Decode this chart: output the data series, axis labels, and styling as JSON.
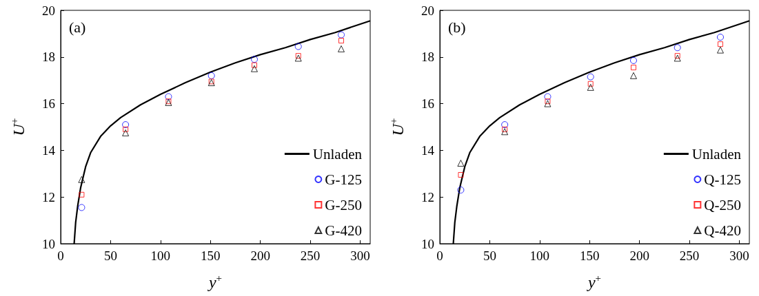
{
  "chart_data": [
    {
      "type": "scatter",
      "annotations": [
        "(a)"
      ],
      "xlabel": "y$^{+}$",
      "ylabel": "U$^{+}$",
      "xlim": [
        0,
        310
      ],
      "xticks": [
        0,
        50,
        100,
        150,
        200,
        250,
        300
      ],
      "ylim": [
        10,
        20
      ],
      "yticks": [
        10,
        12,
        14,
        16,
        18,
        20
      ],
      "grid": false,
      "legend": "bottom right",
      "series": [
        {
          "name": "Unladen",
          "type": "line",
          "color": "#000000",
          "marker": "none",
          "line_style": "solid",
          "x": [
            13.5,
            15,
            17,
            20,
            25,
            30,
            40,
            50,
            60,
            80,
            100,
            125,
            150,
            175,
            200,
            225,
            250,
            275,
            310
          ],
          "values": [
            10,
            10.9,
            11.6,
            12.4,
            13.3,
            13.9,
            14.6,
            15.05,
            15.4,
            15.95,
            16.4,
            16.9,
            17.35,
            17.75,
            18.1,
            18.4,
            18.75,
            19.05,
            19.55
          ]
        },
        {
          "name": "G-125",
          "color": "#0000ff",
          "marker": "circle",
          "x": [
            21,
            65,
            108,
            151,
            194,
            238,
            281
          ],
          "values": [
            11.55,
            15.1,
            16.3,
            17.2,
            17.9,
            18.45,
            18.95
          ]
        },
        {
          "name": "G-250",
          "color": "#ff0000",
          "marker": "square",
          "x": [
            21,
            65,
            108,
            151,
            194,
            238,
            281
          ],
          "values": [
            12.1,
            14.9,
            16.1,
            16.95,
            17.65,
            18.05,
            18.7
          ]
        },
        {
          "name": "G-420",
          "color": "#000000",
          "marker": "triangle",
          "x": [
            21,
            65,
            108,
            151,
            194,
            238,
            281
          ],
          "values": [
            12.75,
            14.75,
            16.05,
            16.9,
            17.5,
            17.95,
            18.35
          ]
        }
      ]
    },
    {
      "type": "scatter",
      "annotations": [
        "(b)"
      ],
      "xlabel": "y$^{+}$",
      "ylabel": "U$^{+}$",
      "xlim": [
        0,
        310
      ],
      "xticks": [
        0,
        50,
        100,
        150,
        200,
        250,
        300
      ],
      "ylim": [
        10,
        20
      ],
      "yticks": [
        10,
        12,
        14,
        16,
        18,
        20
      ],
      "grid": false,
      "legend": "bottom right",
      "series": [
        {
          "name": "Unladen",
          "type": "line",
          "color": "#000000",
          "marker": "none",
          "line_style": "solid",
          "x": [
            13.5,
            15,
            17,
            20,
            25,
            30,
            40,
            50,
            60,
            80,
            100,
            125,
            150,
            175,
            200,
            225,
            250,
            275,
            310
          ],
          "values": [
            10,
            10.9,
            11.6,
            12.4,
            13.3,
            13.9,
            14.6,
            15.05,
            15.4,
            15.95,
            16.4,
            16.9,
            17.35,
            17.75,
            18.1,
            18.4,
            18.75,
            19.05,
            19.55
          ]
        },
        {
          "name": "Q-125",
          "color": "#0000ff",
          "marker": "circle",
          "x": [
            21,
            65,
            108,
            151,
            194,
            238,
            281
          ],
          "values": [
            12.3,
            15.1,
            16.3,
            17.15,
            17.85,
            18.4,
            18.85
          ]
        },
        {
          "name": "Q-250",
          "color": "#ff0000",
          "marker": "square",
          "x": [
            21,
            65,
            108,
            151,
            194,
            238,
            281
          ],
          "values": [
            12.95,
            14.9,
            16.1,
            16.85,
            17.55,
            18.05,
            18.55
          ]
        },
        {
          "name": "Q-420",
          "color": "#000000",
          "marker": "triangle",
          "x": [
            21,
            65,
            108,
            151,
            194,
            238,
            281
          ],
          "values": [
            13.45,
            14.8,
            16.0,
            16.7,
            17.2,
            17.95,
            18.3
          ]
        }
      ]
    }
  ]
}
